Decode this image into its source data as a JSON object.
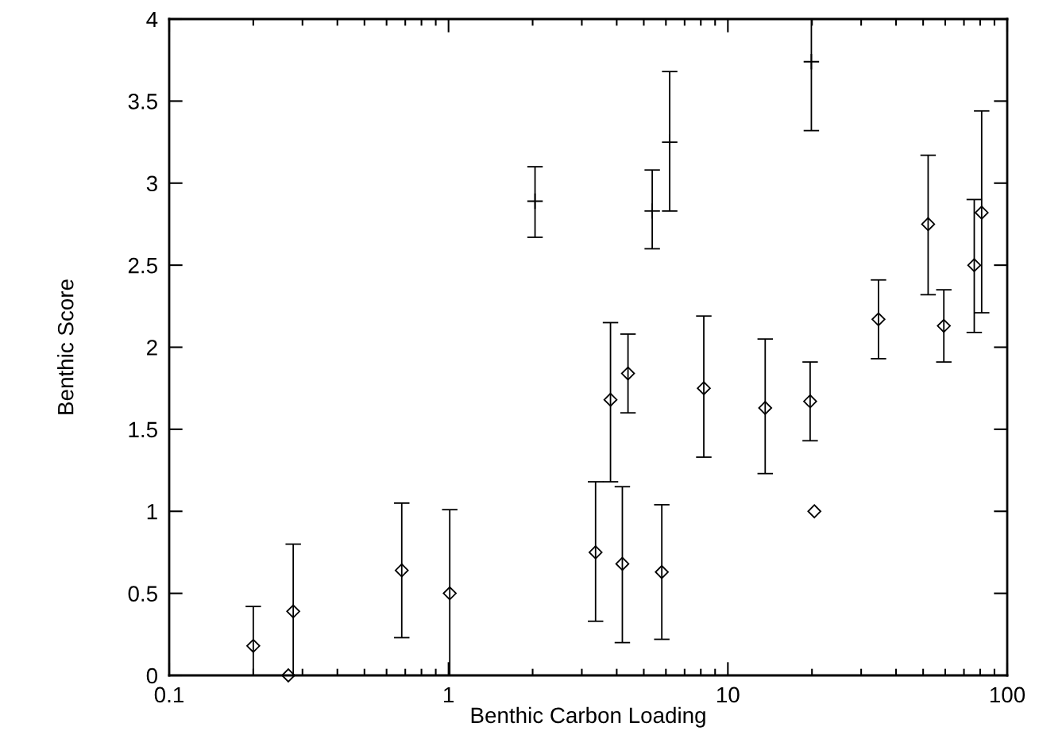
{
  "chart_data": {
    "type": "scatter",
    "xlabel": "Benthic Carbon Loading",
    "ylabel": "Benthic Score",
    "log": "x",
    "xlim": [
      0.1,
      100
    ],
    "xticks": [
      0.1,
      1,
      10,
      100
    ],
    "ylim": [
      0,
      4
    ],
    "yticks": [
      0,
      0.5,
      1,
      1.5,
      2,
      2.5,
      3,
      3.5,
      4
    ],
    "grid": false,
    "series": [
      {
        "color": "#000000",
        "marker": "diamond",
        "x": [
          0.2,
          0.267,
          0.278,
          0.68,
          1.01,
          3.36,
          3.8,
          4.19,
          4.39,
          5.8,
          8.2,
          13.6,
          19.7,
          20.4,
          34.6,
          52.1,
          59.3,
          76.2,
          81.0
        ],
        "values": [
          0.18,
          0,
          0.39,
          0.64,
          0.5,
          0.75,
          1.68,
          0.68,
          1.84,
          0.63,
          1.75,
          1.63,
          1.67,
          1.0,
          2.17,
          2.75,
          2.13,
          2.5,
          2.82
        ],
        "errors": [
          [
            0,
            0.42
          ],
          null,
          [
            0,
            0.8
          ],
          [
            0.23,
            1.05
          ],
          [
            0,
            1.01
          ],
          [
            0.33,
            1.18
          ],
          [
            1.18,
            2.15
          ],
          [
            0.2,
            1.15
          ],
          [
            1.6,
            2.08
          ],
          [
            0.22,
            1.04
          ],
          [
            1.33,
            2.19
          ],
          [
            1.23,
            2.05
          ],
          [
            1.43,
            1.91
          ],
          null,
          [
            1.93,
            2.41
          ],
          [
            2.32,
            3.17
          ],
          [
            1.91,
            2.35
          ],
          [
            2.09,
            2.9
          ],
          [
            2.21,
            3.44
          ]
        ]
      },
      {
        "color": "#000000",
        "marker": "cross",
        "x": [
          2.04,
          5.36,
          6.19,
          19.9
        ],
        "values": [
          2.89,
          2.83,
          3.25,
          3.74
        ],
        "errors": [
          [
            2.67,
            3.1
          ],
          [
            2.6,
            3.08
          ],
          [
            2.83,
            3.68
          ],
          [
            3.32,
            4.0
          ]
        ]
      }
    ]
  }
}
